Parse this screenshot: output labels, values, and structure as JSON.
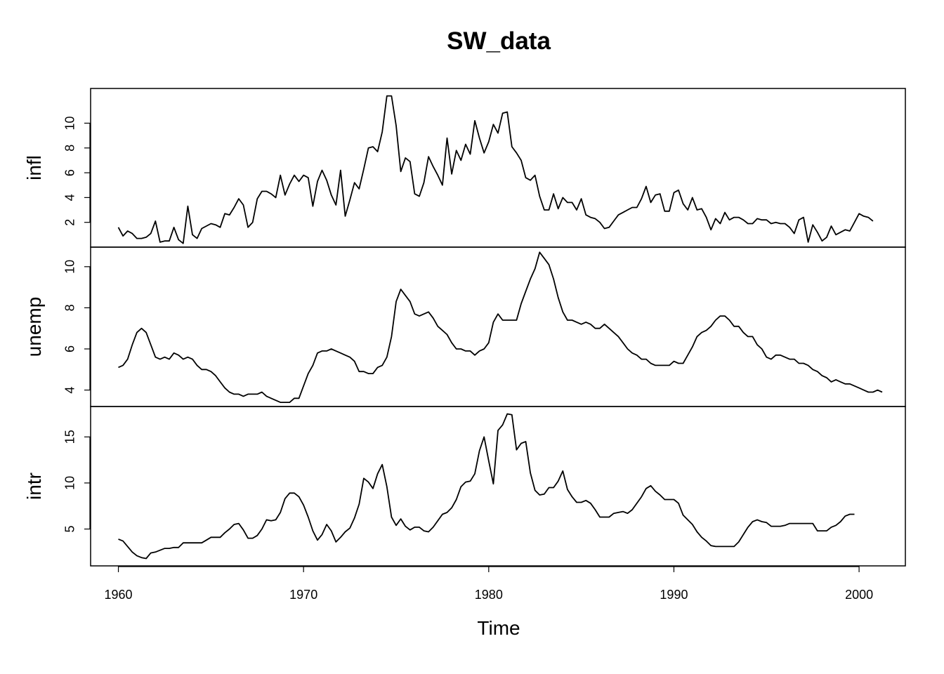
{
  "chart_data": {
    "type": "line",
    "title": "SW_data",
    "xlabel": "Time",
    "grid": false,
    "x_ticks": [
      1960,
      1970,
      1980,
      1990,
      2000
    ],
    "x_tick_labels": [
      "1960",
      "1970",
      "1980",
      "1990",
      "2000"
    ],
    "xlim": [
      1958.5,
      2002.5
    ],
    "x_start": 1960.0,
    "x_step": 0.25,
    "panels": [
      {
        "name": "infl",
        "ylabel": "infl",
        "ylim": [
          0.0,
          12.8
        ],
        "y_ticks": [
          2,
          4,
          6,
          8,
          10
        ],
        "y_tick_labels": [
          "2",
          "4",
          "6",
          "8",
          "10"
        ],
        "values": [
          1.6,
          0.9,
          1.3,
          1.1,
          0.7,
          0.7,
          0.8,
          1.1,
          2.1,
          0.4,
          0.5,
          0.5,
          1.6,
          0.6,
          0.3,
          3.3,
          1.0,
          0.7,
          1.5,
          1.7,
          1.9,
          1.8,
          1.6,
          2.7,
          2.6,
          3.2,
          3.9,
          3.4,
          1.6,
          2.0,
          3.9,
          4.5,
          4.5,
          4.3,
          4.0,
          5.8,
          4.2,
          5.1,
          5.8,
          5.3,
          5.8,
          5.6,
          3.3,
          5.3,
          6.2,
          5.4,
          4.2,
          3.4,
          6.2,
          2.5,
          3.8,
          5.2,
          4.7,
          6.3,
          8.0,
          8.1,
          7.7,
          9.3,
          12.2,
          12.2,
          9.8,
          6.1,
          7.2,
          6.9,
          4.3,
          4.1,
          5.2,
          7.3,
          6.5,
          5.8,
          5.0,
          8.8,
          5.9,
          7.8,
          7.0,
          8.3,
          7.5,
          10.2,
          8.8,
          7.6,
          8.5,
          9.9,
          9.2,
          10.8,
          10.9,
          8.1,
          7.6,
          7.0,
          5.6,
          5.4,
          5.8,
          4.1,
          3.0,
          3.0,
          4.3,
          3.1,
          4.0,
          3.6,
          3.6,
          3.0,
          3.9,
          2.6,
          2.4,
          2.3,
          2.0,
          1.5,
          1.6,
          2.1,
          2.6,
          2.8,
          3.0,
          3.2,
          3.2,
          3.9,
          4.9,
          3.6,
          4.2,
          4.3,
          2.9,
          2.9,
          4.4,
          4.6,
          3.5,
          3.0,
          4.0,
          3.0,
          3.1,
          2.4,
          1.4,
          2.3,
          1.9,
          2.8,
          2.2,
          2.4,
          2.4,
          2.2,
          1.9,
          1.9,
          2.3,
          2.2,
          2.2,
          1.9,
          2.0,
          1.9,
          1.9,
          1.6,
          1.1,
          2.2,
          2.4,
          0.4,
          1.8,
          1.2,
          0.5,
          0.8,
          1.7,
          1.0,
          1.2,
          1.4,
          1.3,
          2.0,
          2.7,
          2.5,
          2.4,
          2.1
        ]
      },
      {
        "name": "unemp",
        "ylabel": "unemp",
        "ylim": [
          3.2,
          10.95
        ],
        "y_ticks": [
          4,
          6,
          8,
          10
        ],
        "y_tick_labels": [
          "4",
          "6",
          "8",
          "10"
        ],
        "values": [
          5.1,
          5.2,
          5.5,
          6.2,
          6.8,
          7.0,
          6.8,
          6.2,
          5.6,
          5.5,
          5.6,
          5.5,
          5.8,
          5.7,
          5.5,
          5.6,
          5.5,
          5.2,
          5.0,
          5.0,
          4.9,
          4.7,
          4.4,
          4.1,
          3.9,
          3.8,
          3.8,
          3.7,
          3.8,
          3.8,
          3.8,
          3.9,
          3.7,
          3.6,
          3.5,
          3.4,
          3.4,
          3.4,
          3.6,
          3.6,
          4.2,
          4.8,
          5.2,
          5.8,
          5.9,
          5.9,
          6.0,
          5.9,
          5.8,
          5.7,
          5.6,
          5.4,
          4.9,
          4.9,
          4.8,
          4.8,
          5.1,
          5.2,
          5.6,
          6.6,
          8.3,
          8.9,
          8.6,
          8.3,
          7.7,
          7.6,
          7.7,
          7.8,
          7.5,
          7.1,
          6.9,
          6.7,
          6.3,
          6.0,
          6.0,
          5.9,
          5.9,
          5.7,
          5.9,
          6.0,
          6.3,
          7.3,
          7.7,
          7.4,
          7.4,
          7.4,
          7.4,
          8.2,
          8.8,
          9.4,
          9.9,
          10.7,
          10.4,
          10.1,
          9.4,
          8.5,
          7.8,
          7.4,
          7.4,
          7.3,
          7.2,
          7.3,
          7.2,
          7.0,
          7.0,
          7.2,
          7.0,
          6.8,
          6.6,
          6.3,
          6.0,
          5.8,
          5.7,
          5.5,
          5.5,
          5.3,
          5.2,
          5.2,
          5.2,
          5.2,
          5.4,
          5.3,
          5.3,
          5.7,
          6.1,
          6.6,
          6.8,
          6.9,
          7.1,
          7.4,
          7.6,
          7.6,
          7.4,
          7.1,
          7.1,
          6.8,
          6.6,
          6.6,
          6.2,
          6.0,
          5.6,
          5.5,
          5.7,
          5.7,
          5.6,
          5.5,
          5.5,
          5.3,
          5.3,
          5.2,
          5.0,
          4.9,
          4.7,
          4.6,
          4.4,
          4.5,
          4.4,
          4.3,
          4.3,
          4.2,
          4.1,
          4.0,
          3.9,
          3.9,
          4.0,
          3.9
        ]
      },
      {
        "name": "intr",
        "ylabel": "intr",
        "ylim": [
          1.0,
          18.3
        ],
        "y_ticks": [
          5,
          10,
          15
        ],
        "y_tick_labels": [
          "5",
          "10",
          "15"
        ],
        "values": [
          3.9,
          3.7,
          3.1,
          2.5,
          2.1,
          1.9,
          1.8,
          2.4,
          2.5,
          2.7,
          2.9,
          2.9,
          3.0,
          3.0,
          3.5,
          3.5,
          3.5,
          3.5,
          3.5,
          3.8,
          4.1,
          4.1,
          4.1,
          4.6,
          5.0,
          5.5,
          5.6,
          4.9,
          4.0,
          4.0,
          4.3,
          5.0,
          6.0,
          5.9,
          6.0,
          6.8,
          8.3,
          8.9,
          8.9,
          8.5,
          7.6,
          6.3,
          4.8,
          3.8,
          4.4,
          5.5,
          4.8,
          3.6,
          4.1,
          4.7,
          5.1,
          6.2,
          7.7,
          10.5,
          10.1,
          9.4,
          11.0,
          12.0,
          9.6,
          6.3,
          5.4,
          6.1,
          5.3,
          4.9,
          5.2,
          5.2,
          4.8,
          4.7,
          5.2,
          5.9,
          6.6,
          6.8,
          7.3,
          8.2,
          9.6,
          10.1,
          10.2,
          11.0,
          13.5,
          15.0,
          12.4,
          9.9,
          15.7,
          16.3,
          17.5,
          17.4,
          13.6,
          14.3,
          14.5,
          11.1,
          9.2,
          8.7,
          8.8,
          9.5,
          9.5,
          10.2,
          11.3,
          9.3,
          8.5,
          7.9,
          7.9,
          8.1,
          7.8,
          7.1,
          6.3,
          6.3,
          6.3,
          6.7,
          6.8,
          6.9,
          6.7,
          7.1,
          7.8,
          8.5,
          9.4,
          9.7,
          9.1,
          8.7,
          8.2,
          8.2,
          8.2,
          7.8,
          6.5,
          6.0,
          5.5,
          4.7,
          4.1,
          3.7,
          3.2,
          3.1,
          3.1,
          3.1,
          3.1,
          3.1,
          3.6,
          4.4,
          5.2,
          5.8,
          6.0,
          5.8,
          5.7,
          5.3,
          5.3,
          5.3,
          5.4,
          5.6,
          5.6,
          5.6,
          5.6,
          5.6,
          5.6,
          4.8,
          4.8,
          4.8,
          5.2,
          5.4,
          5.8,
          6.4,
          6.6,
          6.6
        ]
      }
    ]
  }
}
